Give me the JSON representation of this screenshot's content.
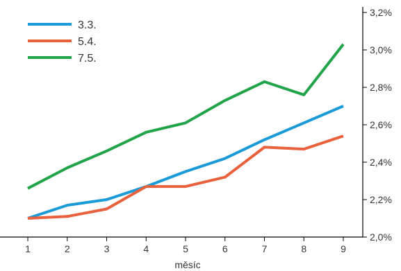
{
  "chart_data": {
    "type": "line",
    "xlabel": "měsíc",
    "ylabel": "",
    "x": [
      1,
      2,
      3,
      4,
      5,
      6,
      7,
      8,
      9
    ],
    "x_tick_labels": [
      "1",
      "2",
      "3",
      "4",
      "5",
      "6",
      "7",
      "8",
      "9"
    ],
    "ylim": [
      2.0,
      3.2
    ],
    "y_ticks": [
      2.0,
      2.2,
      2.4,
      2.6,
      2.8,
      3.0,
      3.2
    ],
    "y_tick_labels": [
      "2,0%",
      "2,2%",
      "2,4%",
      "2,6%",
      "2,8%",
      "3,0%",
      "3,2%"
    ],
    "y_axis_side": "right",
    "grid": false,
    "legend_position": "top-left",
    "series": [
      {
        "name": "3.3.",
        "color": "#1a9ad6",
        "values": [
          2.1,
          2.17,
          2.2,
          2.27,
          2.35,
          2.42,
          2.52,
          2.61,
          2.7
        ]
      },
      {
        "name": "5.4.",
        "color": "#e8613c",
        "values": [
          2.1,
          2.11,
          2.15,
          2.27,
          2.27,
          2.32,
          2.48,
          2.47,
          2.54
        ]
      },
      {
        "name": "7.5.",
        "color": "#21a34a",
        "values": [
          2.26,
          2.37,
          2.46,
          2.56,
          2.61,
          2.73,
          2.83,
          2.76,
          3.03
        ]
      }
    ]
  }
}
